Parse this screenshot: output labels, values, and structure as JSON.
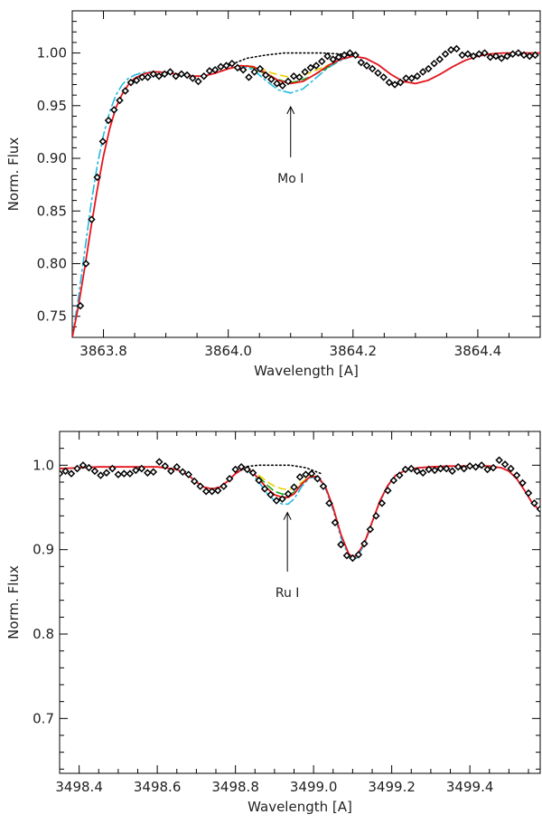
{
  "colors": {
    "data_points": "#000000",
    "red_model": "#e8141b",
    "cyan_model": "#22b8e0",
    "yellow_model": "#e9d100",
    "green_model": "#18a718",
    "continuum": "#000000"
  },
  "chart_data": [
    {
      "type": "line",
      "title": "",
      "xlabel": "Wavelength [A]",
      "ylabel": "Norm. Flux",
      "xlim": [
        3863.75,
        3864.5
      ],
      "ylim": [
        0.73,
        1.04
      ],
      "xticks": [
        3863.8,
        3864.0,
        3864.2,
        3864.4
      ],
      "xtick_labels": [
        "3863.8",
        "3864.0",
        "3864.2",
        "3864.4"
      ],
      "yticks": [
        0.75,
        0.8,
        0.85,
        0.9,
        0.95,
        1.0
      ],
      "ytick_labels": [
        "0.75",
        "0.80",
        "0.85",
        "0.90",
        "0.95",
        "1.00"
      ],
      "annotation": {
        "text": "Mo I",
        "x": 3864.1,
        "arrow_from_y": 0.901,
        "arrow_to_y": 0.949
      },
      "observed": {
        "x": [
          3863.763,
          3863.772,
          3863.781,
          3863.79,
          3863.799,
          3863.808,
          3863.817,
          3863.826,
          3863.835,
          3863.844,
          3863.853,
          3863.862,
          3863.871,
          3863.88,
          3863.889,
          3863.898,
          3863.907,
          3863.916,
          3863.925,
          3863.934,
          3863.943,
          3863.952,
          3863.961,
          3863.97,
          3863.979,
          3863.988,
          3863.997,
          3864.006,
          3864.015,
          3864.024,
          3864.033,
          3864.042,
          3864.051,
          3864.06,
          3864.069,
          3864.078,
          3864.087,
          3864.096,
          3864.105,
          3864.114,
          3864.123,
          3864.132,
          3864.141,
          3864.15,
          3864.159,
          3864.168,
          3864.177,
          3864.186,
          3864.195,
          3864.204,
          3864.213,
          3864.222,
          3864.231,
          3864.24,
          3864.249,
          3864.258,
          3864.267,
          3864.276,
          3864.285,
          3864.294,
          3864.303,
          3864.312,
          3864.321,
          3864.33,
          3864.339,
          3864.348,
          3864.357,
          3864.366,
          3864.375,
          3864.384,
          3864.393,
          3864.402,
          3864.411,
          3864.42,
          3864.429,
          3864.438,
          3864.447,
          3864.456,
          3864.465,
          3864.474,
          3864.483,
          3864.492
        ],
        "y": [
          0.76,
          0.8,
          0.842,
          0.882,
          0.916,
          0.936,
          0.946,
          0.955,
          0.964,
          0.972,
          0.974,
          0.977,
          0.977,
          0.98,
          0.978,
          0.98,
          0.982,
          0.978,
          0.98,
          0.979,
          0.976,
          0.973,
          0.978,
          0.983,
          0.984,
          0.987,
          0.988,
          0.99,
          0.986,
          0.984,
          0.977,
          0.982,
          0.985,
          0.979,
          0.975,
          0.971,
          0.969,
          0.973,
          0.978,
          0.977,
          0.982,
          0.986,
          0.988,
          0.992,
          0.997,
          0.994,
          0.996,
          0.998,
          1.0,
          0.998,
          0.991,
          0.988,
          0.985,
          0.981,
          0.977,
          0.972,
          0.97,
          0.972,
          0.976,
          0.976,
          0.978,
          0.982,
          0.985,
          0.99,
          0.994,
          0.999,
          1.003,
          1.004,
          0.998,
          0.999,
          0.997,
          0.999,
          1.0,
          0.996,
          0.997,
          0.995,
          0.997,
          0.999,
          1.0,
          0.998,
          0.997,
          0.998
        ]
      },
      "continuum": {
        "x": [
          3864.0,
          3864.03,
          3864.06,
          3864.09,
          3864.12,
          3864.15,
          3864.18,
          3864.21
        ],
        "y": [
          0.988,
          0.995,
          0.998,
          1.0,
          1.0,
          1.0,
          0.999,
          0.996
        ]
      },
      "series": [
        {
          "color": "#e8141b",
          "style": "solid",
          "x": [
            3863.75,
            3863.76,
            3863.77,
            3863.78,
            3863.79,
            3863.8,
            3863.81,
            3863.82,
            3863.83,
            3863.84,
            3863.85,
            3863.86,
            3863.87,
            3863.88,
            3863.89,
            3863.9,
            3863.92,
            3863.94,
            3863.96,
            3863.98,
            3864.0,
            3864.02,
            3864.04,
            3864.06,
            3864.08,
            3864.1,
            3864.12,
            3864.14,
            3864.16,
            3864.18,
            3864.2,
            3864.22,
            3864.24,
            3864.26,
            3864.28,
            3864.3,
            3864.32,
            3864.34,
            3864.36,
            3864.38,
            3864.4,
            3864.42,
            3864.44,
            3864.46,
            3864.48,
            3864.5
          ],
          "y": [
            0.73,
            0.76,
            0.796,
            0.834,
            0.87,
            0.902,
            0.928,
            0.948,
            0.961,
            0.97,
            0.976,
            0.979,
            0.981,
            0.982,
            0.982,
            0.981,
            0.98,
            0.978,
            0.978,
            0.981,
            0.985,
            0.988,
            0.987,
            0.981,
            0.974,
            0.971,
            0.973,
            0.98,
            0.988,
            0.994,
            0.997,
            0.995,
            0.989,
            0.98,
            0.973,
            0.971,
            0.974,
            0.98,
            0.987,
            0.993,
            0.997,
            0.999,
            1.0,
            1.0,
            1.0,
            1.0
          ]
        },
        {
          "color": "#22b8e0",
          "style": "dashdot",
          "x": [
            3863.75,
            3863.76,
            3863.77,
            3863.78,
            3863.79,
            3863.8,
            3863.81,
            3863.82,
            3863.83,
            3863.84,
            3863.85,
            3863.86,
            3863.87,
            3863.88,
            3863.89,
            3863.9,
            3863.92,
            3863.94,
            3863.96,
            3863.98,
            3864.0,
            3864.02,
            3864.04,
            3864.06,
            3864.08,
            3864.1,
            3864.12,
            3864.14,
            3864.16,
            3864.18,
            3864.2,
            3864.22,
            3864.24,
            3864.26,
            3864.28,
            3864.3,
            3864.32,
            3864.34,
            3864.36,
            3864.38,
            3864.4,
            3864.42,
            3864.44,
            3864.46,
            3864.48,
            3864.5
          ],
          "y": [
            0.73,
            0.768,
            0.812,
            0.856,
            0.893,
            0.922,
            0.944,
            0.96,
            0.97,
            0.976,
            0.979,
            0.981,
            0.982,
            0.982,
            0.982,
            0.981,
            0.98,
            0.978,
            0.978,
            0.981,
            0.985,
            0.988,
            0.984,
            0.974,
            0.965,
            0.962,
            0.966,
            0.976,
            0.986,
            0.993,
            0.997,
            0.995,
            0.989,
            0.98,
            0.973,
            0.971,
            0.974,
            0.98,
            0.987,
            0.993,
            0.997,
            0.999,
            1.0,
            1.0,
            1.0,
            1.0
          ]
        },
        {
          "color": "#e9d100",
          "style": "dashed",
          "x": [
            3864.03,
            3864.05,
            3864.07,
            3864.09,
            3864.1,
            3864.11,
            3864.13,
            3864.15,
            3864.17
          ],
          "y": [
            0.988,
            0.986,
            0.981,
            0.978,
            0.977,
            0.978,
            0.981,
            0.986,
            0.991
          ]
        },
        {
          "color": "#18a718",
          "style": "dashed",
          "x": [
            3864.03,
            3864.05,
            3864.07,
            3864.09,
            3864.1,
            3864.11,
            3864.13,
            3864.15,
            3864.17
          ],
          "y": [
            0.988,
            0.983,
            0.977,
            0.973,
            0.972,
            0.973,
            0.977,
            0.983,
            0.99
          ]
        }
      ]
    },
    {
      "type": "line",
      "title": "",
      "xlabel": "Wavelength [A]",
      "ylabel": "Norm. Flux",
      "xlim": [
        3498.35,
        3499.58
      ],
      "ylim": [
        0.635,
        1.04
      ],
      "xticks": [
        3498.4,
        3498.6,
        3498.8,
        3499.0,
        3499.2,
        3499.4
      ],
      "xtick_labels": [
        "3498.4",
        "3498.6",
        "3498.8",
        "3499.0",
        "3499.2",
        "3499.4"
      ],
      "yticks": [
        0.7,
        0.8,
        0.9,
        1.0
      ],
      "ytick_labels": [
        "0.7",
        "0.8",
        "0.9",
        "1.0"
      ],
      "annotation": {
        "text": "Ru I",
        "x": 3498.933,
        "arrow_from_y": 0.874,
        "arrow_to_y": 0.944
      },
      "observed": {
        "x": [
          3498.35,
          3498.365,
          3498.38,
          3498.395,
          3498.41,
          3498.425,
          3498.44,
          3498.455,
          3498.47,
          3498.485,
          3498.5,
          3498.515,
          3498.53,
          3498.545,
          3498.56,
          3498.575,
          3498.59,
          3498.605,
          3498.62,
          3498.635,
          3498.65,
          3498.665,
          3498.68,
          3498.695,
          3498.71,
          3498.725,
          3498.74,
          3498.755,
          3498.77,
          3498.785,
          3498.8,
          3498.815,
          3498.83,
          3498.845,
          3498.86,
          3498.875,
          3498.89,
          3498.905,
          3498.92,
          3498.935,
          3498.95,
          3498.965,
          3498.98,
          3498.995,
          3499.01,
          3499.025,
          3499.04,
          3499.055,
          3499.07,
          3499.085,
          3499.1,
          3499.115,
          3499.13,
          3499.145,
          3499.16,
          3499.175,
          3499.19,
          3499.205,
          3499.22,
          3499.235,
          3499.25,
          3499.265,
          3499.28,
          3499.295,
          3499.31,
          3499.325,
          3499.34,
          3499.355,
          3499.37,
          3499.385,
          3499.4,
          3499.415,
          3499.43,
          3499.445,
          3499.46,
          3499.475,
          3499.49,
          3499.505,
          3499.52,
          3499.535,
          3499.55,
          3499.565,
          3499.58
        ],
        "y": [
          0.99,
          0.993,
          0.99,
          0.996,
          1.0,
          0.997,
          0.993,
          0.988,
          0.991,
          0.996,
          0.989,
          0.99,
          0.99,
          0.994,
          0.996,
          0.991,
          0.992,
          1.004,
          0.999,
          0.993,
          0.998,
          0.992,
          0.989,
          0.981,
          0.975,
          0.969,
          0.969,
          0.97,
          0.975,
          0.984,
          0.995,
          0.998,
          0.995,
          0.991,
          0.982,
          0.972,
          0.965,
          0.958,
          0.96,
          0.966,
          0.974,
          0.986,
          0.989,
          0.99,
          0.984,
          0.975,
          0.955,
          0.932,
          0.906,
          0.893,
          0.89,
          0.894,
          0.907,
          0.924,
          0.94,
          0.955,
          0.97,
          0.982,
          0.988,
          0.995,
          0.996,
          0.993,
          0.991,
          0.995,
          0.994,
          0.996,
          0.996,
          0.993,
          0.998,
          0.996,
          0.999,
          0.998,
          1.0,
          0.995,
          0.997,
          1.006,
          1.001,
          0.996,
          0.988,
          0.979,
          0.967,
          0.955,
          0.948
        ]
      },
      "continuum": {
        "x": [
          3498.82,
          3498.86,
          3498.9,
          3498.94,
          3498.98,
          3499.02
        ],
        "y": [
          0.998,
          1.0,
          1.0,
          1.0,
          0.997,
          0.99
        ]
      },
      "series": [
        {
          "color": "#e8141b",
          "style": "solid",
          "x": [
            3498.35,
            3498.4,
            3498.45,
            3498.5,
            3498.55,
            3498.6,
            3498.65,
            3498.68,
            3498.7,
            3498.72,
            3498.74,
            3498.76,
            3498.78,
            3498.8,
            3498.82,
            3498.84,
            3498.86,
            3498.88,
            3498.9,
            3498.92,
            3498.935,
            3498.95,
            3498.97,
            3498.99,
            3499.01,
            3499.03,
            3499.05,
            3499.07,
            3499.09,
            3499.1,
            3499.11,
            3499.13,
            3499.15,
            3499.17,
            3499.19,
            3499.21,
            3499.24,
            3499.27,
            3499.3,
            3499.35,
            3499.4,
            3499.45,
            3499.48,
            3499.5,
            3499.52,
            3499.54,
            3499.56,
            3499.58
          ],
          "y": [
            0.996,
            0.997,
            0.998,
            0.998,
            0.998,
            0.998,
            0.995,
            0.988,
            0.98,
            0.974,
            0.972,
            0.974,
            0.981,
            0.99,
            0.996,
            0.993,
            0.984,
            0.973,
            0.965,
            0.962,
            0.962,
            0.966,
            0.978,
            0.986,
            0.987,
            0.975,
            0.95,
            0.918,
            0.895,
            0.891,
            0.893,
            0.908,
            0.933,
            0.958,
            0.976,
            0.988,
            0.995,
            0.997,
            0.998,
            0.999,
            0.999,
            0.999,
            0.997,
            0.993,
            0.984,
            0.97,
            0.955,
            0.946
          ]
        },
        {
          "color": "#22b8e0",
          "style": "dashdot",
          "x": [
            3498.35,
            3498.4,
            3498.45,
            3498.5,
            3498.55,
            3498.6,
            3498.65,
            3498.68,
            3498.7,
            3498.72,
            3498.74,
            3498.76,
            3498.78,
            3498.8,
            3498.82,
            3498.84,
            3498.86,
            3498.88,
            3498.9,
            3498.92,
            3498.935,
            3498.95,
            3498.97,
            3498.99,
            3499.01,
            3499.03,
            3499.05,
            3499.07,
            3499.09,
            3499.1,
            3499.11,
            3499.13,
            3499.15,
            3499.17,
            3499.19,
            3499.21,
            3499.24,
            3499.27,
            3499.3,
            3499.35,
            3499.4,
            3499.45,
            3499.48,
            3499.5,
            3499.52,
            3499.54,
            3499.56,
            3499.58
          ],
          "y": [
            0.996,
            0.997,
            0.998,
            0.998,
            0.998,
            0.998,
            0.995,
            0.988,
            0.98,
            0.974,
            0.972,
            0.974,
            0.981,
            0.99,
            0.995,
            0.991,
            0.98,
            0.967,
            0.958,
            0.954,
            0.954,
            0.96,
            0.975,
            0.985,
            0.986,
            0.973,
            0.947,
            0.914,
            0.892,
            0.888,
            0.89,
            0.906,
            0.932,
            0.957,
            0.975,
            0.988,
            0.995,
            0.997,
            0.998,
            0.999,
            0.999,
            0.999,
            0.997,
            0.993,
            0.984,
            0.97,
            0.955,
            0.946
          ]
        },
        {
          "color": "#e9d100",
          "style": "dashed",
          "x": [
            3498.86,
            3498.88,
            3498.9,
            3498.92,
            3498.935,
            3498.95,
            3498.97,
            3498.99
          ],
          "y": [
            0.988,
            0.981,
            0.975,
            0.972,
            0.971,
            0.973,
            0.98,
            0.987
          ]
        },
        {
          "color": "#18a718",
          "style": "dashed",
          "x": [
            3498.86,
            3498.88,
            3498.9,
            3498.92,
            3498.935,
            3498.95,
            3498.97,
            3498.99
          ],
          "y": [
            0.986,
            0.977,
            0.969,
            0.966,
            0.965,
            0.968,
            0.978,
            0.986
          ]
        }
      ]
    }
  ]
}
